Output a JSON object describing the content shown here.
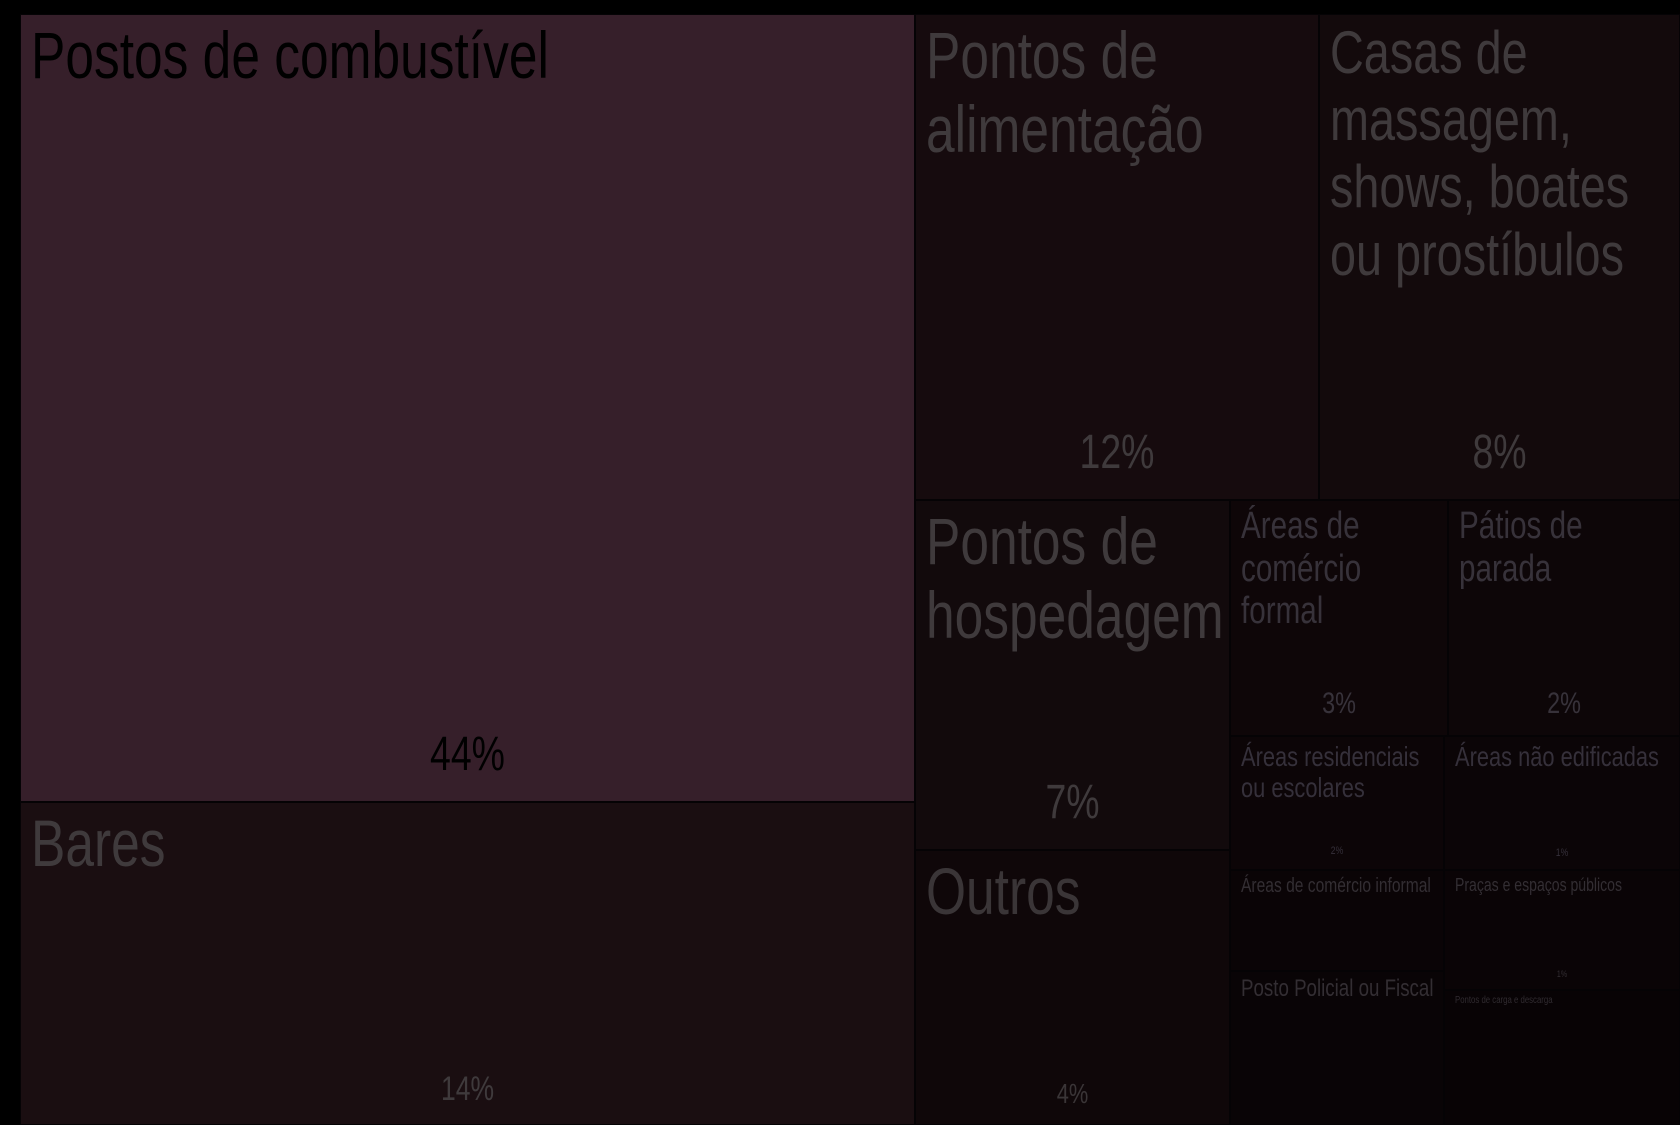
{
  "chart_data": {
    "type": "treemap",
    "items": [
      {
        "label": "Postos de combustível",
        "value_label": "44%",
        "value": 44,
        "fill": "#361f2a",
        "text_color": "#000000"
      },
      {
        "label": "Bares",
        "value_label": "14%",
        "value": 14,
        "fill": "#1a0e11",
        "text_color": "#3f3a3c"
      },
      {
        "label": "Pontos de alimentação",
        "value_label": "12%",
        "value": 12,
        "fill": "#160b0e",
        "text_color": "#3f3a3c"
      },
      {
        "label": "Casas de massagem, shows, boates ou prostíbulos",
        "value_label": "8%",
        "value": 8,
        "fill": "#130a0c",
        "text_color": "#3f3a3c"
      },
      {
        "label": "Pontos de hospedagem",
        "value_label": "7%",
        "value": 7,
        "fill": "#120a0c",
        "text_color": "#3f3a3c"
      },
      {
        "label": "Outros",
        "value_label": "4%",
        "value": 4,
        "fill": "#0f0709",
        "text_color": "#3a3537"
      },
      {
        "label": "Áreas de comércio formal",
        "value_label": "3%",
        "value": 3,
        "fill": "#0e0608",
        "text_color": "#37323a"
      },
      {
        "label": "Pátios de parada",
        "value_label": "2%",
        "value": 2,
        "fill": "#0d0608",
        "text_color": "#37323a"
      },
      {
        "label": "Áreas residenciais ou escolares",
        "value_label": "2%",
        "value": 2,
        "fill": "#0c0507",
        "text_color": "#35303a"
      },
      {
        "label": "Áreas não edificadas",
        "value_label": "1%",
        "value": 1,
        "fill": "#0b0507",
        "text_color": "#35303a"
      },
      {
        "label": "Áreas de comércio informal",
        "value_label": "",
        "value": 1,
        "fill": "#0a0406",
        "text_color": "#332e33"
      },
      {
        "label": "Praças e espaços públicos",
        "value_label": "1%",
        "value": 1,
        "fill": "#0a0406",
        "text_color": "#332e33"
      },
      {
        "label": "Posto Policial ou Fiscal",
        "value_label": "",
        "value": 1,
        "fill": "#090406",
        "text_color": "#332e33"
      },
      {
        "label": "Pontos de carga e descarga",
        "value_label": "",
        "value": 0.5,
        "fill": "#080305",
        "text_color": "#302b30"
      }
    ]
  }
}
